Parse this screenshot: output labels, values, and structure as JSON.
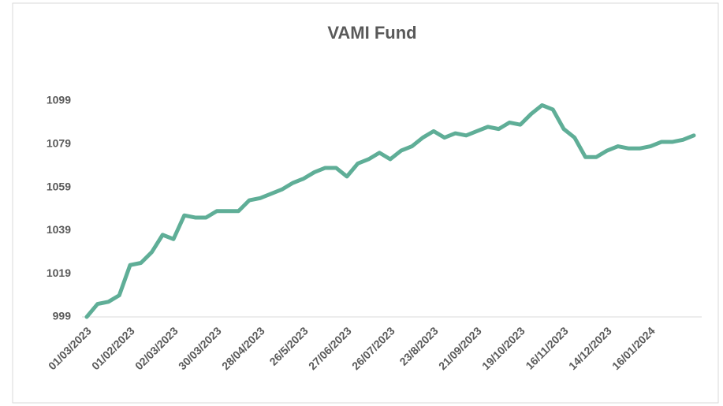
{
  "chart_data": {
    "type": "line",
    "title": "VAMI Fund",
    "categories": [
      "01/03/2023",
      null,
      null,
      null,
      "01/02/2023",
      null,
      null,
      null,
      "02/03/2023",
      null,
      null,
      null,
      "30/03/2023",
      null,
      null,
      null,
      "28/04/2023",
      null,
      null,
      null,
      "26/5/2023",
      null,
      null,
      null,
      "27/06/2023",
      null,
      null,
      null,
      "26/07/2023",
      null,
      null,
      null,
      "23/8/2023",
      null,
      null,
      null,
      "21/09/2023",
      null,
      null,
      null,
      "19/10/2023",
      null,
      null,
      null,
      "16/11/2023",
      null,
      null,
      null,
      "14/12/2023",
      null,
      null,
      null,
      "16/01/2024",
      null,
      null,
      null,
      null
    ],
    "series": [
      {
        "name": "VAMI Fund",
        "color": "#5fae97",
        "values": [
          999,
          1005,
          1006,
          1009,
          1023,
          1024,
          1029,
          1037,
          1035,
          1046,
          1045,
          1045,
          1048,
          1048,
          1048,
          1053,
          1054,
          1056,
          1058,
          1061,
          1063,
          1066,
          1068,
          1068,
          1064,
          1070,
          1072,
          1075,
          1072,
          1076,
          1078,
          1082,
          1085,
          1082,
          1084,
          1083,
          1085,
          1087,
          1086,
          1089,
          1088,
          1093,
          1097,
          1095,
          1086,
          1082,
          1073,
          1073,
          1076,
          1078,
          1077,
          1077,
          1078,
          1080,
          1080,
          1081,
          1083
        ]
      }
    ],
    "ylim": [
      999,
      1099
    ],
    "yticks": [
      999,
      1019,
      1039,
      1059,
      1079,
      1099
    ]
  }
}
